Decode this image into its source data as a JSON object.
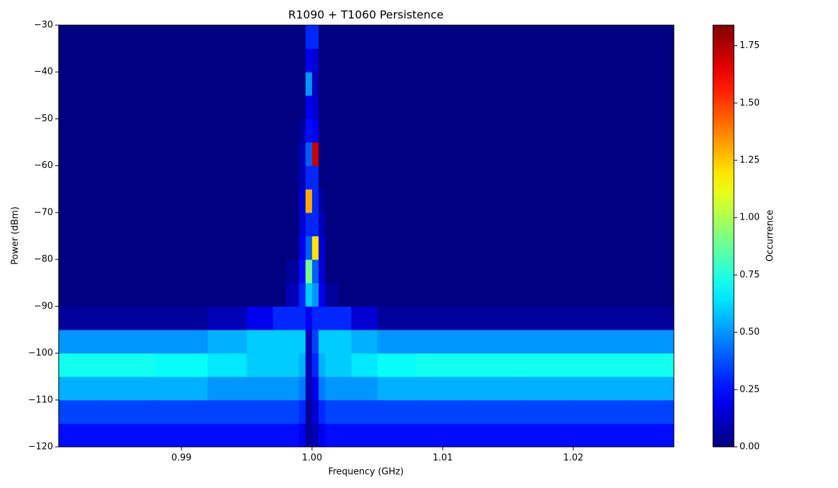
{
  "chart_data": {
    "type": "heatmap",
    "title": "R1090 + T1060 Persistence",
    "x_label": "Frequency (GHz)",
    "y_label": "Power (dBm)",
    "colorbar_label": "Occurrence",
    "colormap": "jet",
    "xlim": [
      0.9806,
      1.0277
    ],
    "ylim": [
      -120,
      -30
    ],
    "clim": [
      0,
      1.84
    ],
    "xticks": [
      0.99,
      {
        "value": 1.0,
        "label": "1.00"
      },
      1.01,
      1.02
    ],
    "yticks": [
      {
        "value": -120,
        "label": "−120"
      },
      {
        "value": -110,
        "label": "−110"
      },
      {
        "value": -100,
        "label": "−100"
      },
      {
        "value": -90,
        "label": "−90"
      },
      {
        "value": -80,
        "label": "−80"
      },
      {
        "value": -70,
        "label": "−70"
      },
      {
        "value": -60,
        "label": "−60"
      },
      {
        "value": -50,
        "label": "−50"
      },
      {
        "value": -40,
        "label": "−40"
      },
      {
        "value": -30,
        "label": "−30"
      }
    ],
    "cticks": [
      {
        "value": 0,
        "label": "0.00"
      },
      {
        "value": 0.25,
        "label": "0.25"
      },
      {
        "value": 0.5,
        "label": "0.50"
      },
      {
        "value": 0.75,
        "label": "0.75"
      },
      {
        "value": 1.0,
        "label": "1.00"
      },
      {
        "value": 1.25,
        "label": "1.25"
      },
      {
        "value": 1.5,
        "label": "1.50"
      },
      {
        "value": 1.75,
        "label": "1.75"
      }
    ],
    "xbins": [
      0.9806,
      0.984,
      0.988,
      0.992,
      0.995,
      0.997,
      0.998,
      0.999,
      0.9995,
      1.0,
      1.0005,
      1.001,
      1.002,
      1.003,
      1.005,
      1.008,
      1.012,
      1.016,
      1.02,
      1.024,
      1.0277
    ],
    "ybins": [
      -120,
      -115,
      -110,
      -105,
      -100,
      -95,
      -90,
      -85,
      -80,
      -75,
      -70,
      -65,
      -60,
      -55,
      -50,
      -45,
      -40,
      -35,
      -30
    ],
    "values": [
      [
        0.25,
        0.25,
        0.25,
        0.25,
        0.25,
        0.25,
        0.25,
        0.2,
        0.05,
        0.1,
        0.2,
        0.25,
        0.25,
        0.25,
        0.25,
        0.25,
        0.25,
        0.25,
        0.25,
        0.25
      ],
      [
        0.35,
        0.35,
        0.35,
        0.35,
        0.35,
        0.35,
        0.35,
        0.3,
        0.05,
        0.15,
        0.3,
        0.35,
        0.35,
        0.35,
        0.35,
        0.35,
        0.35,
        0.35,
        0.35,
        0.35
      ],
      [
        0.55,
        0.55,
        0.55,
        0.5,
        0.5,
        0.5,
        0.5,
        0.45,
        0.08,
        0.2,
        0.45,
        0.5,
        0.5,
        0.5,
        0.55,
        0.55,
        0.55,
        0.55,
        0.55,
        0.55
      ],
      [
        0.72,
        0.72,
        0.7,
        0.65,
        0.6,
        0.6,
        0.6,
        0.55,
        0.1,
        0.3,
        0.55,
        0.6,
        0.6,
        0.65,
        0.7,
        0.72,
        0.72,
        0.72,
        0.72,
        0.72
      ],
      [
        0.5,
        0.5,
        0.5,
        0.55,
        0.6,
        0.6,
        0.6,
        0.6,
        0.1,
        0.35,
        0.6,
        0.6,
        0.6,
        0.55,
        0.5,
        0.5,
        0.5,
        0.5,
        0.5,
        0.5
      ],
      [
        0.05,
        0.05,
        0.05,
        0.1,
        0.2,
        0.3,
        0.3,
        0.3,
        0.2,
        0.3,
        0.3,
        0.3,
        0.3,
        0.15,
        0.05,
        0.05,
        0.05,
        0.05,
        0.05,
        0.05
      ],
      [
        0,
        0,
        0,
        0,
        0,
        0,
        0.1,
        0.3,
        0.6,
        0.5,
        0.2,
        0.05,
        0,
        0,
        0,
        0,
        0,
        0,
        0,
        0
      ],
      [
        0,
        0,
        0,
        0,
        0,
        0,
        0.05,
        0.25,
        0.9,
        0.4,
        0.15,
        0,
        0,
        0,
        0,
        0,
        0,
        0,
        0,
        0
      ],
      [
        0,
        0,
        0,
        0,
        0,
        0,
        0,
        0.2,
        0.4,
        1.2,
        0.15,
        0,
        0,
        0,
        0,
        0,
        0,
        0,
        0,
        0
      ],
      [
        0,
        0,
        0,
        0,
        0,
        0,
        0,
        0.15,
        0.3,
        0.3,
        0.1,
        0,
        0,
        0,
        0,
        0,
        0,
        0,
        0,
        0
      ],
      [
        0,
        0,
        0,
        0,
        0,
        0,
        0,
        0.15,
        1.3,
        0.3,
        0.05,
        0,
        0,
        0,
        0,
        0,
        0,
        0,
        0,
        0
      ],
      [
        0,
        0,
        0,
        0,
        0,
        0,
        0,
        0.1,
        0.3,
        0.3,
        0,
        0,
        0,
        0,
        0,
        0,
        0,
        0,
        0,
        0
      ],
      [
        0,
        0,
        0,
        0,
        0,
        0,
        0,
        0.1,
        0.4,
        1.7,
        0,
        0,
        0,
        0,
        0,
        0,
        0,
        0,
        0,
        0
      ],
      [
        0,
        0,
        0,
        0,
        0,
        0,
        0,
        0.05,
        0.25,
        0.2,
        0,
        0,
        0,
        0,
        0,
        0,
        0,
        0,
        0,
        0
      ],
      [
        0,
        0,
        0,
        0,
        0,
        0,
        0,
        0,
        0.2,
        0.15,
        0,
        0,
        0,
        0,
        0,
        0,
        0,
        0,
        0,
        0
      ],
      [
        0,
        0,
        0,
        0,
        0,
        0,
        0,
        0,
        0.5,
        0.1,
        0,
        0,
        0,
        0,
        0,
        0,
        0,
        0,
        0,
        0
      ],
      [
        0,
        0,
        0,
        0,
        0,
        0,
        0,
        0,
        0.2,
        0.15,
        0,
        0,
        0,
        0,
        0,
        0,
        0,
        0,
        0,
        0
      ],
      [
        0,
        0,
        0,
        0,
        0,
        0,
        0,
        0,
        0.3,
        0.3,
        0,
        0,
        0,
        0,
        0,
        0,
        0,
        0,
        0,
        0
      ]
    ]
  }
}
